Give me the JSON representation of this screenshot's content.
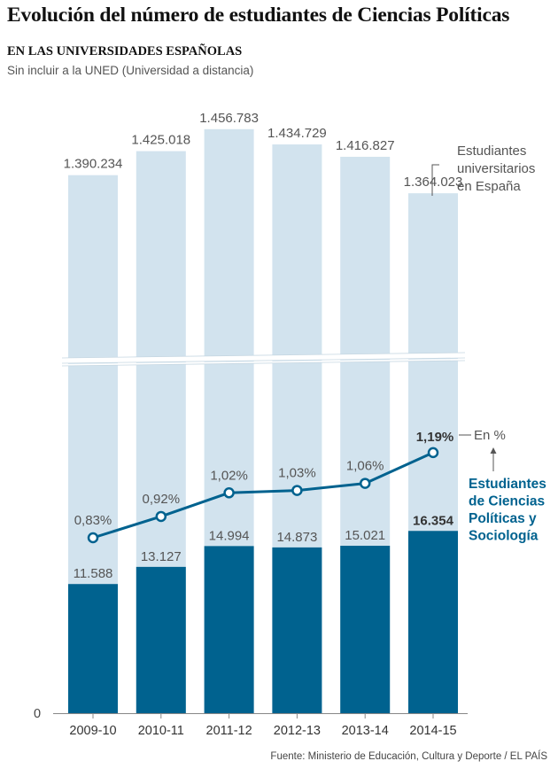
{
  "title": "Evolución del número de estudiantes de Ciencias Políticas",
  "subtitle": "EN LAS UNIVERSIDADES ESPAÑOLAS",
  "note": "Sin incluir a la UNED (Universidad a distancia)",
  "source": "Fuente: Ministerio de Educación, Cultura y Deporte / EL PAÍS",
  "colors": {
    "total_bar": "#d2e3ee",
    "polsci_bar": "#00628f",
    "line": "#00628f",
    "axis": "#888888",
    "text": "#555555"
  },
  "chart_data": {
    "type": "bar",
    "axis_break": true,
    "categories": [
      "2009-10",
      "2010-11",
      "2011-12",
      "2012-13",
      "2013-14",
      "2014-15"
    ],
    "y_tick_labels": [
      "0"
    ],
    "series": [
      {
        "name": "Estudiantes universitarios en España",
        "values": [
          1390234,
          1425018,
          1456783,
          1434729,
          1416827,
          1364023
        ],
        "labels": [
          "1.390.234",
          "1.425.018",
          "1.456.783",
          "1.434.729",
          "1.416.827",
          "1.364.023"
        ]
      },
      {
        "name": "Estudiantes de Ciencias Políticas y Sociología",
        "values": [
          11588,
          13127,
          14994,
          14873,
          15021,
          16354
        ],
        "labels": [
          "11.588",
          "13.127",
          "14.994",
          "14.873",
          "15.021",
          "16.354"
        ]
      }
    ],
    "line_series": {
      "name": "En %",
      "values": [
        0.83,
        0.92,
        1.02,
        1.03,
        1.06,
        1.19
      ],
      "labels": [
        "0,83%",
        "0,92%",
        "1,02%",
        "1,03%",
        "1,06%",
        "1,19%"
      ]
    },
    "annotations": {
      "total": [
        "Estudiantes",
        "universitarios",
        "en España"
      ],
      "percent": "En %",
      "polsci": [
        "Estudiantes",
        "de Ciencias",
        "Políticas y",
        "Sociología"
      ]
    }
  }
}
